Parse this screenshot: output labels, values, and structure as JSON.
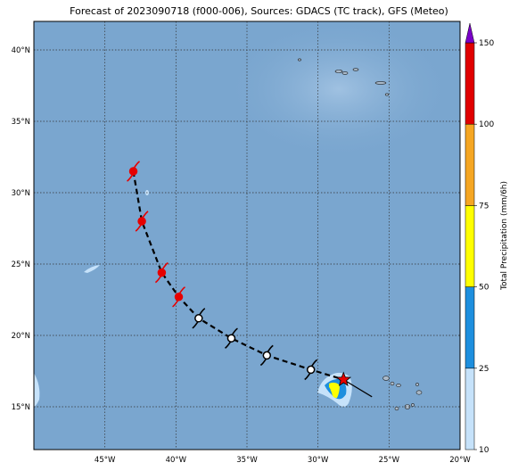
{
  "title": "Forecast of 2023090718 (f000-006), Sources: GDACS (TC track), GFS (Meteo)",
  "colors": {
    "ocean": "#7aa6cf",
    "land": "#aab9c8",
    "track_line": "#000000",
    "storm_observed": "#e60000",
    "storm_forecast": "#ffffff",
    "current_marker": "#e60000",
    "grid": "#333333"
  },
  "axes": {
    "lon_ticks": [
      "45°W",
      "40°W",
      "35°W",
      "30°W",
      "25°W",
      "20°W"
    ],
    "lat_ticks": [
      "15°N",
      "20°N",
      "25°N",
      "30°N",
      "35°N",
      "40°N"
    ],
    "lon_range": [
      -50,
      -20
    ],
    "lat_range": [
      12,
      42
    ]
  },
  "colorbar": {
    "label": "Total Precipitation (mm/6h)",
    "ticks": [
      "10",
      "25",
      "50",
      "75",
      "100",
      "150"
    ],
    "segments": [
      {
        "from": 10,
        "to": 25,
        "color": "#c6e2fa"
      },
      {
        "from": 25,
        "to": 50,
        "color": "#1e8fde"
      },
      {
        "from": 50,
        "to": 75,
        "color": "#ffff00"
      },
      {
        "from": 75,
        "to": 100,
        "color": "#f5a623"
      },
      {
        "from": 100,
        "to": 150,
        "color": "#e00000"
      }
    ],
    "extend_color": "#7a00c8"
  },
  "track": {
    "points": [
      {
        "lon": -43.0,
        "lat": 31.5,
        "kind": "observed"
      },
      {
        "lon": -42.4,
        "lat": 28.0,
        "kind": "observed"
      },
      {
        "lon": -41.0,
        "lat": 24.4,
        "kind": "observed"
      },
      {
        "lon": -39.8,
        "lat": 22.7,
        "kind": "observed"
      },
      {
        "lon": -38.4,
        "lat": 21.2,
        "kind": "forecast"
      },
      {
        "lon": -36.1,
        "lat": 19.8,
        "kind": "forecast"
      },
      {
        "lon": -33.6,
        "lat": 18.6,
        "kind": "forecast"
      },
      {
        "lon": -30.5,
        "lat": 17.6,
        "kind": "forecast"
      }
    ],
    "current": {
      "lon": -28.2,
      "lat": 16.9
    },
    "heading_end": {
      "lon": -26.2,
      "lat": 15.7
    }
  }
}
